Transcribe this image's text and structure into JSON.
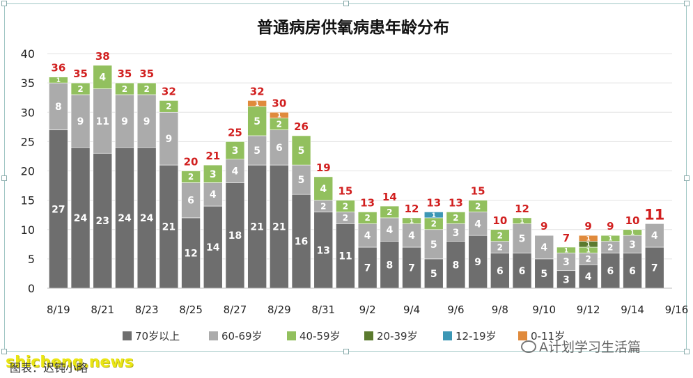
{
  "caption": "图表：迟钝小略",
  "watermark": "shicheng.news",
  "brand": "A计划学习生活篇",
  "colors": {
    "s70plus": "#6e6e6e",
    "s60_69": "#ababab",
    "s40_59": "#92c05e",
    "s20_39": "#5b7a2e",
    "s12_19": "#3c97b5",
    "s0_11": "#e08a3c",
    "total_label": "#d11f1f",
    "frame": "#9fc6c4"
  },
  "chart_data": {
    "type": "bar",
    "stacked": true,
    "title": "普通病房供氧病患年龄分布",
    "xlabel": "",
    "ylabel": "",
    "ylim": [
      0,
      40
    ],
    "yticks": [
      0,
      5,
      10,
      15,
      20,
      25,
      30,
      35,
      40
    ],
    "grid": true,
    "legend_position": "bottom",
    "categories": [
      "8/19",
      "8/20",
      "8/21",
      "8/22",
      "8/23",
      "8/24",
      "8/25",
      "8/26",
      "8/27",
      "8/28",
      "8/29",
      "8/30",
      "8/31",
      "9/1",
      "9/2",
      "9/3",
      "9/4",
      "9/5",
      "9/6",
      "9/7",
      "9/8",
      "9/9",
      "9/10",
      "9/11",
      "9/12",
      "9/13",
      "9/14",
      "9/15"
    ],
    "xtick_labels": [
      "8/19",
      "8/21",
      "8/23",
      "8/25",
      "8/27",
      "8/29",
      "8/31",
      "9/2",
      "9/4",
      "9/6",
      "9/8",
      "9/10",
      "9/12",
      "9/14",
      "9/16"
    ],
    "series": [
      {
        "name": "70岁以上",
        "values": [
          27,
          24,
          23,
          24,
          24,
          21,
          12,
          14,
          18,
          21,
          21,
          16,
          13,
          11,
          7,
          8,
          7,
          5,
          8,
          9,
          6,
          6,
          5,
          3,
          4,
          6,
          6,
          7
        ]
      },
      {
        "name": "60-69岁",
        "values": [
          8,
          9,
          11,
          9,
          9,
          9,
          6,
          4,
          4,
          5,
          6,
          5,
          2,
          2,
          4,
          4,
          4,
          5,
          3,
          4,
          2,
          5,
          4,
          3,
          2,
          2,
          3,
          4
        ]
      },
      {
        "name": "40-59岁",
        "values": [
          1,
          2,
          4,
          2,
          2,
          2,
          2,
          3,
          3,
          5,
          2,
          5,
          4,
          2,
          2,
          2,
          1,
          2,
          2,
          2,
          2,
          1,
          0,
          1,
          1,
          1,
          1,
          0
        ]
      },
      {
        "name": "20-39岁",
        "values": [
          0,
          0,
          0,
          0,
          0,
          0,
          0,
          0,
          0,
          0,
          0,
          0,
          0,
          0,
          0,
          0,
          0,
          0,
          0,
          0,
          0,
          0,
          0,
          0,
          1,
          0,
          0,
          0
        ]
      },
      {
        "name": "12-19岁",
        "values": [
          0,
          0,
          0,
          0,
          0,
          0,
          0,
          0,
          0,
          0,
          0,
          0,
          0,
          0,
          0,
          0,
          0,
          1,
          0,
          0,
          0,
          0,
          0,
          0,
          0,
          0,
          0,
          0
        ]
      },
      {
        "name": "0-11岁",
        "values": [
          0,
          0,
          0,
          0,
          0,
          0,
          0,
          0,
          0,
          1,
          1,
          0,
          0,
          0,
          0,
          0,
          0,
          0,
          0,
          0,
          0,
          0,
          0,
          0,
          1,
          0,
          0,
          0
        ]
      }
    ],
    "totals": [
      36,
      35,
      38,
      35,
      35,
      32,
      20,
      21,
      25,
      32,
      30,
      26,
      19,
      15,
      13,
      14,
      12,
      13,
      13,
      15,
      10,
      12,
      9,
      7,
      9,
      9,
      10,
      11
    ]
  }
}
